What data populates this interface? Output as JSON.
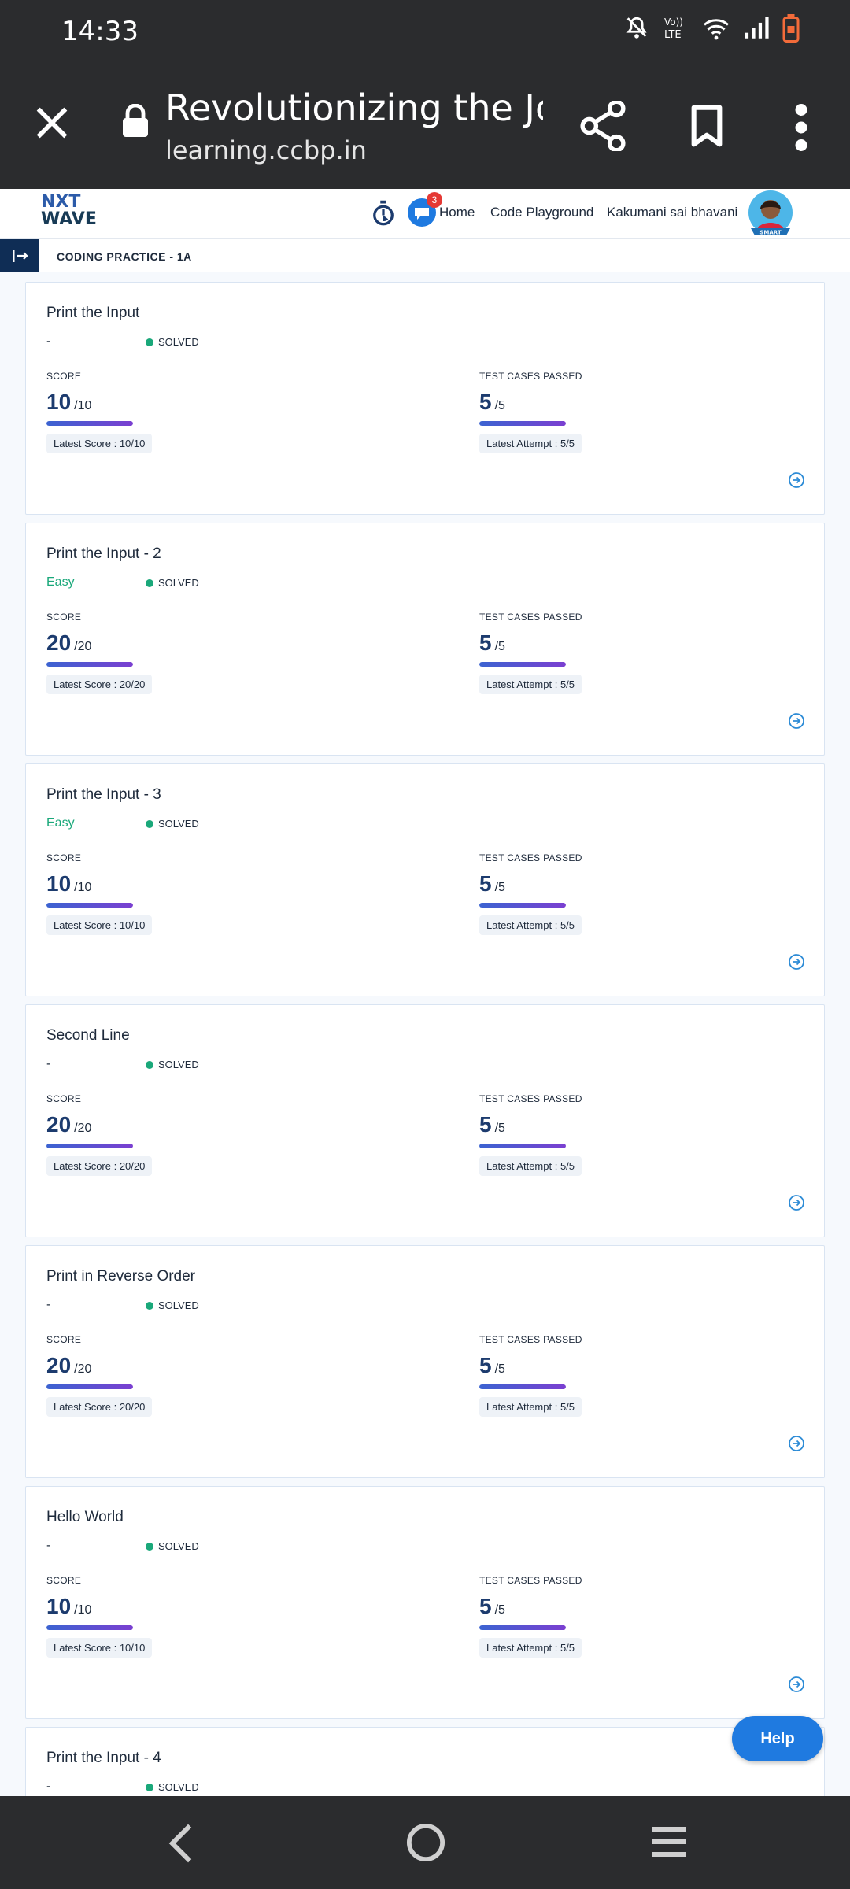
{
  "status_bar": {
    "time": "14:33",
    "network_label": "LTE"
  },
  "browser": {
    "title": "Revolutionizing the Jo…",
    "url": "learning.ccbp.in"
  },
  "nav": {
    "logo_line1": "NXT",
    "logo_line2": "WAVE",
    "chat_badge": "3",
    "home": "Home",
    "playground": "Code Playground",
    "user": "Kakumani sai bhavani",
    "avatar_tag": "SMART"
  },
  "page": {
    "subtitle": "CODING PRACTICE - 1A"
  },
  "labels": {
    "score": "SCORE",
    "test_cases": "TEST CASES PASSED",
    "solved": "SOLVED"
  },
  "problems": [
    {
      "name": "Print the Input",
      "difficulty": "-",
      "score": "10",
      "score_max": "/10",
      "latest_score": "Latest Score : 10/10",
      "tests": "5",
      "tests_max": "/5",
      "latest_attempt": "Latest Attempt : 5/5"
    },
    {
      "name": "Print the Input - 2",
      "difficulty": "Easy",
      "score": "20",
      "score_max": "/20",
      "latest_score": "Latest Score : 20/20",
      "tests": "5",
      "tests_max": "/5",
      "latest_attempt": "Latest Attempt : 5/5"
    },
    {
      "name": "Print the Input - 3",
      "difficulty": "Easy",
      "score": "10",
      "score_max": "/10",
      "latest_score": "Latest Score : 10/10",
      "tests": "5",
      "tests_max": "/5",
      "latest_attempt": "Latest Attempt : 5/5"
    },
    {
      "name": "Second Line",
      "difficulty": "-",
      "score": "20",
      "score_max": "/20",
      "latest_score": "Latest Score : 20/20",
      "tests": "5",
      "tests_max": "/5",
      "latest_attempt": "Latest Attempt : 5/5"
    },
    {
      "name": "Print in Reverse Order",
      "difficulty": "-",
      "score": "20",
      "score_max": "/20",
      "latest_score": "Latest Score : 20/20",
      "tests": "5",
      "tests_max": "/5",
      "latest_attempt": "Latest Attempt : 5/5"
    },
    {
      "name": "Hello World",
      "difficulty": "-",
      "score": "10",
      "score_max": "/10",
      "latest_score": "Latest Score : 10/10",
      "tests": "5",
      "tests_max": "/5",
      "latest_attempt": "Latest Attempt : 5/5"
    },
    {
      "name": "Print the Input - 4",
      "difficulty": "-",
      "score": "",
      "score_max": "",
      "latest_score": "",
      "tests": "",
      "tests_max": "",
      "latest_attempt": ""
    }
  ],
  "progress": {
    "score_fill": 1.0,
    "tests_fill": 1.0
  },
  "colors": {
    "accent": "#1f7ae0",
    "easy": "#1aa87a",
    "solved_dot": "#1aa87a",
    "score_value": "#1c3b6e"
  },
  "help_label": "Help",
  "icons": {
    "close": "close-icon",
    "lock": "lock-icon",
    "share": "share-icon",
    "bookmark": "bookmark-icon",
    "menu": "more-vert-icon",
    "timer": "timer-icon",
    "chat": "chat-icon",
    "go": "arrow-circle-right-icon",
    "back": "back-icon",
    "home": "home-icon",
    "recent": "recent-apps-icon"
  }
}
